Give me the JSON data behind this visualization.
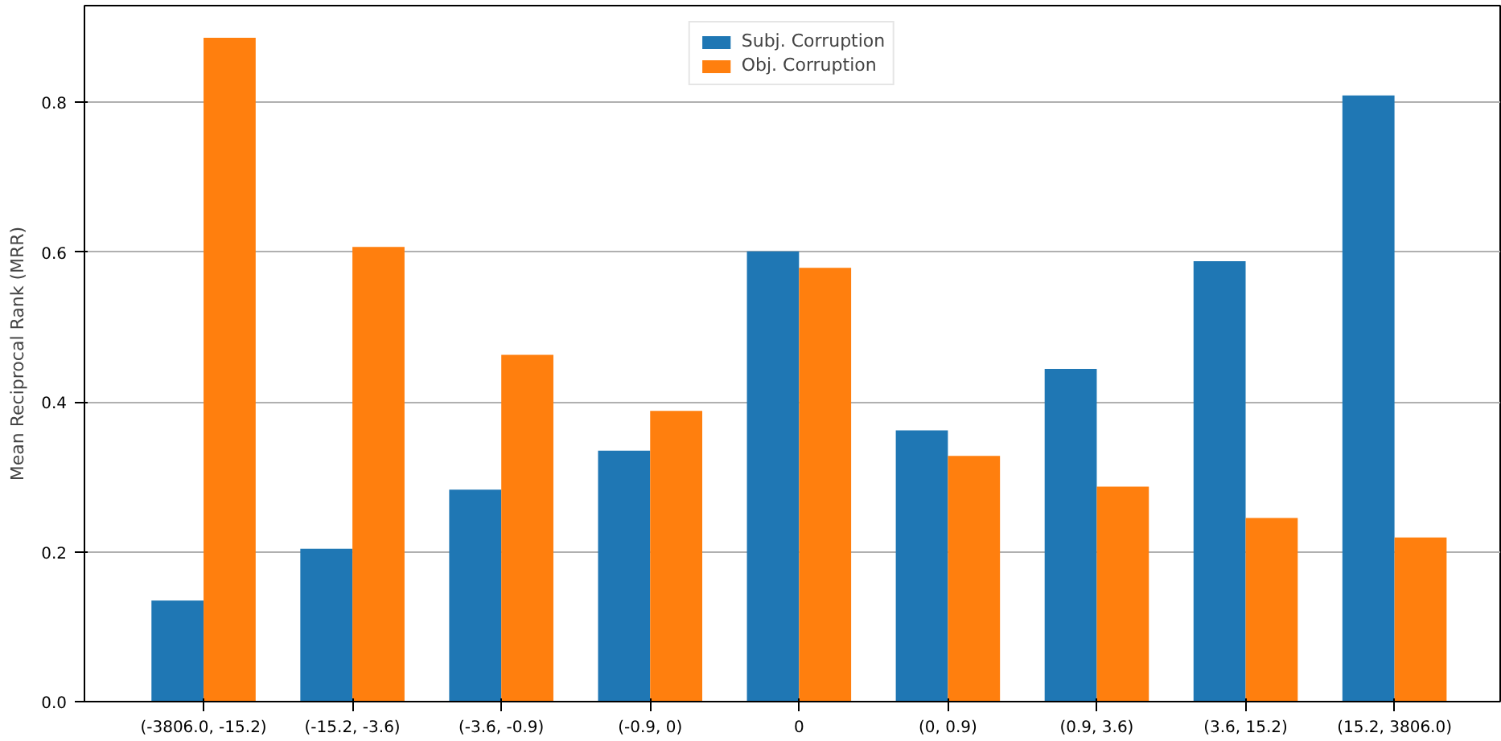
{
  "chart_data": {
    "type": "bar",
    "ylabel": "Mean Reciprocal Rank (MRR)",
    "categories": [
      "(-3806.0, -15.2)",
      "(-15.2, -3.6)",
      "(-3.6, -0.9)",
      "(-0.9, 0)",
      "0",
      "(0, 0.9)",
      "(0.9, 3.6)",
      "(3.6, 15.2)",
      "(15.2, 3806.0)"
    ],
    "series": [
      {
        "name": "Subj. Corruption",
        "color": "#1f77b4",
        "values": [
          0.135,
          0.204,
          0.283,
          0.335,
          0.601,
          0.362,
          0.444,
          0.588,
          0.809
        ]
      },
      {
        "name": "Obj. Corruption",
        "color": "#ff7f0e",
        "values": [
          0.886,
          0.607,
          0.463,
          0.388,
          0.579,
          0.328,
          0.287,
          0.245,
          0.219
        ]
      }
    ],
    "ylim": [
      0,
      0.929
    ],
    "yticks": [
      {
        "value": 0,
        "label": "0.0"
      },
      {
        "value": 0.2,
        "label": "0.2"
      },
      {
        "value": 0.4,
        "label": "0.4"
      },
      {
        "value": 0.6,
        "label": "0.6"
      },
      {
        "value": 0.8,
        "label": "0.8"
      }
    ],
    "grid": "y",
    "legend": "top"
  }
}
